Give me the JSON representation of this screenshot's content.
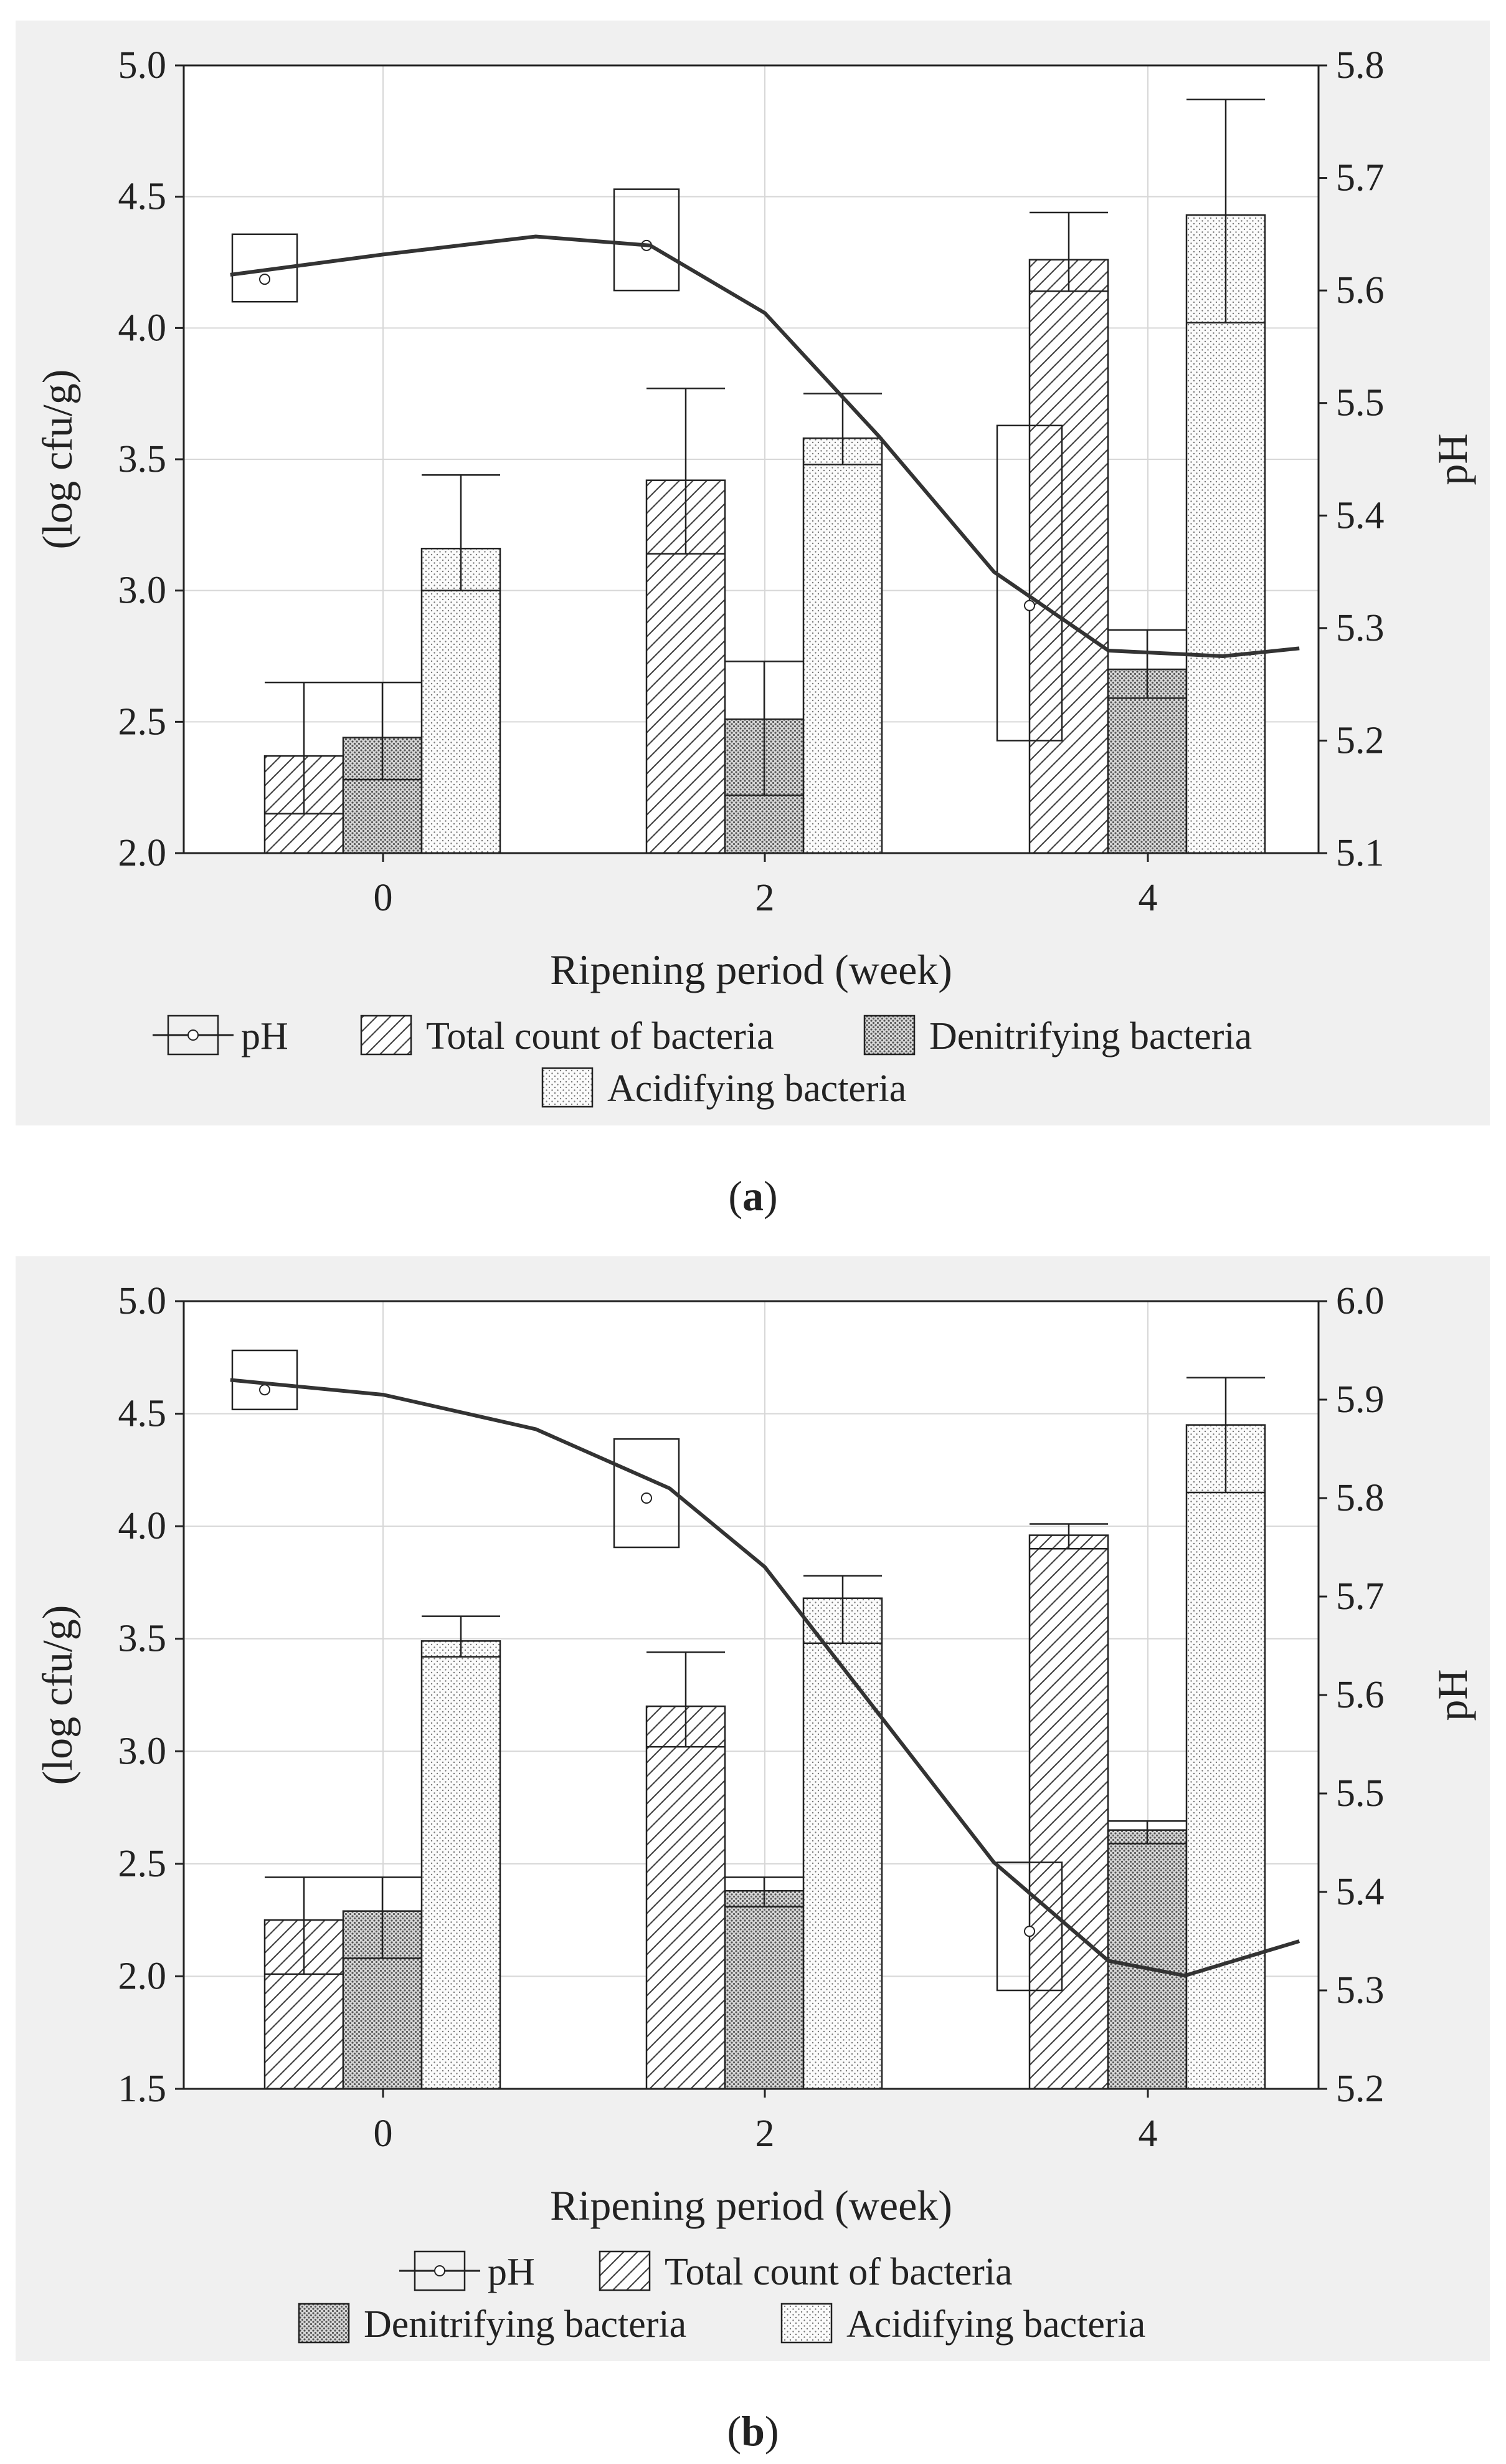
{
  "chart_data": [
    {
      "panel": "a",
      "caption_letter": "a",
      "type": "bar",
      "categories": [
        "0",
        "2",
        "4"
      ],
      "xlabel": "Ripening period (week)",
      "ylabel": "(log cfu/g)",
      "ylabel_right": "pH",
      "ylim": [
        2.0,
        5.0
      ],
      "yticks": [
        "2.0",
        "2.5",
        "3.0",
        "3.5",
        "4.0",
        "4.5",
        "5.0"
      ],
      "ylim_right": [
        5.1,
        5.8
      ],
      "yticks_right": [
        "5.1",
        "5.2",
        "5.3",
        "5.4",
        "5.5",
        "5.6",
        "5.7",
        "5.8"
      ],
      "series": [
        {
          "name": "Total count of bacteria",
          "pattern": "diagonal",
          "values": [
            2.37,
            3.42,
            4.26
          ],
          "err_low": [
            2.15,
            3.14,
            4.14
          ],
          "err_high": [
            2.65,
            3.77,
            4.44
          ]
        },
        {
          "name": "Denitrifying bacteria",
          "pattern": "dense-dots",
          "values": [
            2.44,
            2.51,
            2.7
          ],
          "err_low": [
            2.28,
            2.22,
            2.59
          ],
          "err_high": [
            2.65,
            2.73,
            2.85
          ]
        },
        {
          "name": "Acidifying bacteria",
          "pattern": "light-dots",
          "values": [
            3.16,
            3.58,
            4.43
          ],
          "err_low": [
            3.0,
            3.48,
            4.02
          ],
          "err_high": [
            3.44,
            3.75,
            4.87
          ]
        }
      ],
      "ph": {
        "name": "pH",
        "values": [
          5.61,
          5.64,
          5.32
        ],
        "box_low": [
          5.59,
          5.6,
          5.2
        ],
        "box_high": [
          5.65,
          5.69,
          5.48
        ],
        "curve": [
          [
            -0.8,
            5.614
          ],
          [
            0.0,
            5.632
          ],
          [
            0.8,
            5.648
          ],
          [
            1.4,
            5.64
          ],
          [
            2.0,
            5.58
          ],
          [
            2.6,
            5.47
          ],
          [
            3.2,
            5.35
          ],
          [
            3.8,
            5.28
          ],
          [
            4.4,
            5.275
          ],
          [
            4.8,
            5.282
          ]
        ]
      },
      "legend": {
        "row1": [
          "pH",
          "Total count of bacteria",
          "Denitrifying bacteria"
        ],
        "row2": [
          "Acidifying bacteria"
        ]
      }
    },
    {
      "panel": "b",
      "caption_letter": "b",
      "type": "bar",
      "categories": [
        "0",
        "2",
        "4"
      ],
      "xlabel": "Ripening period (week)",
      "ylabel": "(log cfu/g)",
      "ylabel_right": "pH",
      "ylim": [
        1.5,
        5.0
      ],
      "yticks": [
        "1.5",
        "2.0",
        "2.5",
        "3.0",
        "3.5",
        "4.0",
        "4.5",
        "5.0"
      ],
      "ylim_right": [
        5.2,
        6.0
      ],
      "yticks_right": [
        "5.2",
        "5.3",
        "5.4",
        "5.5",
        "5.6",
        "5.7",
        "5.8",
        "5.9",
        "6.0"
      ],
      "series": [
        {
          "name": "Total count of bacteria",
          "pattern": "diagonal",
          "values": [
            2.25,
            3.2,
            3.96
          ],
          "err_low": [
            2.01,
            3.02,
            3.9
          ],
          "err_high": [
            2.44,
            3.44,
            4.01
          ]
        },
        {
          "name": "Denitrifying bacteria",
          "pattern": "dense-dots",
          "values": [
            2.29,
            2.38,
            2.65
          ],
          "err_low": [
            2.08,
            2.31,
            2.59
          ],
          "err_high": [
            2.44,
            2.44,
            2.69
          ]
        },
        {
          "name": "Acidifying bacteria",
          "pattern": "light-dots",
          "values": [
            3.49,
            3.68,
            4.45
          ],
          "err_low": [
            3.42,
            3.48,
            4.15
          ],
          "err_high": [
            3.6,
            3.78,
            4.66
          ]
        }
      ],
      "ph": {
        "name": "pH",
        "values": [
          5.91,
          5.8,
          5.36
        ],
        "box_low": [
          5.89,
          5.75,
          5.3
        ],
        "box_high": [
          5.95,
          5.86,
          5.43
        ],
        "curve": [
          [
            -0.8,
            5.92
          ],
          [
            0.0,
            5.905
          ],
          [
            0.8,
            5.87
          ],
          [
            1.5,
            5.81
          ],
          [
            2.0,
            5.73
          ],
          [
            2.6,
            5.58
          ],
          [
            3.2,
            5.43
          ],
          [
            3.8,
            5.33
          ],
          [
            4.2,
            5.315
          ],
          [
            4.8,
            5.35
          ]
        ]
      },
      "legend": {
        "row1": [
          "pH",
          "Total count of bacteria"
        ],
        "row2": [
          "Denitrifying bacteria",
          "Acidifying bacteria"
        ]
      }
    }
  ]
}
